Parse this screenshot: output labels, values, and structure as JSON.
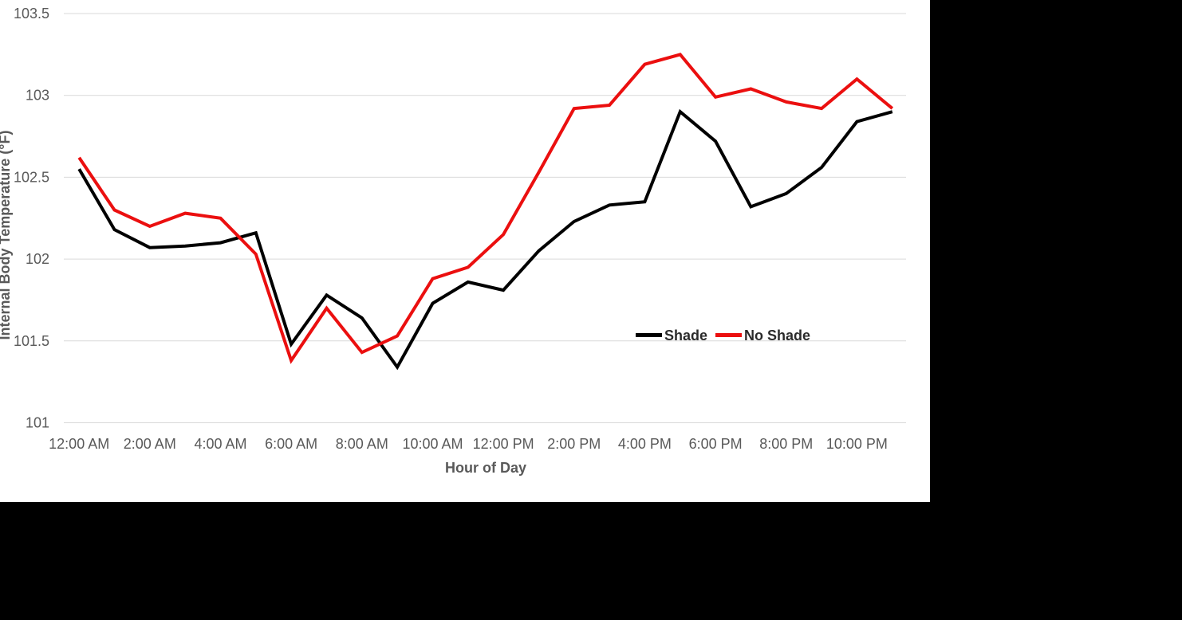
{
  "colors": {
    "page_background": "#000000",
    "chart_background": "#ffffff",
    "gridline": "#d9d9d9",
    "axis_text": "#595959",
    "legend_text": "#2b2b2b"
  },
  "chart_data": {
    "type": "line",
    "title": "",
    "xlabel": "Hour of Day",
    "ylabel": "Internal Body Temperature (°F)",
    "categories": [
      "12:00 AM",
      "1:00 AM",
      "2:00 AM",
      "3:00 AM",
      "4:00 AM",
      "5:00 AM",
      "6:00 AM",
      "7:00 AM",
      "8:00 AM",
      "9:00 AM",
      "10:00 AM",
      "11:00 AM",
      "12:00 PM",
      "1:00 PM",
      "2:00 PM",
      "3:00 PM",
      "4:00 PM",
      "5:00 PM",
      "6:00 PM",
      "7:00 PM",
      "8:00 PM",
      "9:00 PM",
      "10:00 PM",
      "11:00 PM"
    ],
    "x_tick_step": 2,
    "series": [
      {
        "name": "Shade",
        "color": "#000000",
        "values": [
          102.55,
          102.18,
          102.07,
          102.08,
          102.1,
          102.16,
          101.48,
          101.78,
          101.64,
          101.34,
          101.73,
          101.86,
          101.81,
          102.05,
          102.23,
          102.33,
          102.35,
          102.9,
          102.72,
          102.32,
          102.4,
          102.56,
          102.84,
          102.9
        ]
      },
      {
        "name": "No Shade",
        "color": "#eb0f0f",
        "values": [
          102.62,
          102.3,
          102.2,
          102.28,
          102.25,
          102.03,
          101.38,
          101.7,
          101.43,
          101.53,
          101.88,
          101.95,
          102.15,
          102.53,
          102.92,
          102.94,
          103.19,
          103.25,
          102.99,
          103.04,
          102.96,
          102.92,
          103.1,
          102.92
        ]
      }
    ],
    "ylim": [
      101,
      103.5
    ],
    "y_ticks": [
      101,
      101.5,
      102,
      102.5,
      103,
      103.5
    ],
    "grid": "horizontal",
    "legend_position": "inside-right-middle"
  }
}
